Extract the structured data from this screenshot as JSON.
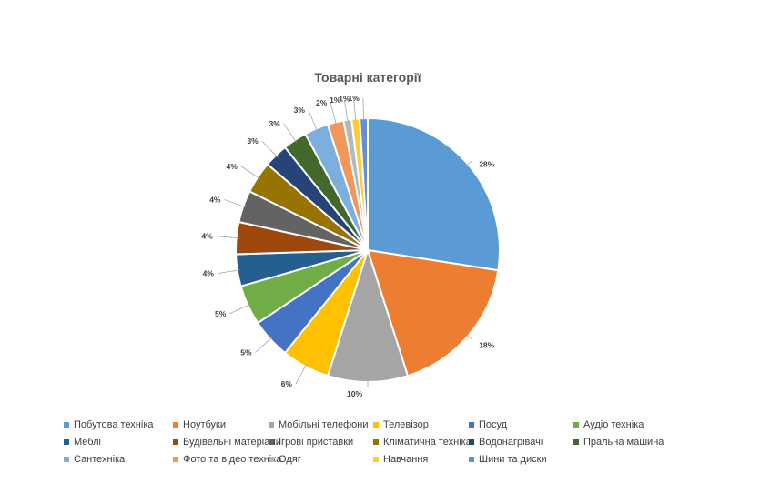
{
  "chart_data": {
    "type": "pie",
    "title": "Товарні категорії",
    "legend_position": "bottom",
    "slices": [
      {
        "label": "Побутова техніка",
        "value": 28,
        "value_label": "28%",
        "color": "#5B9BD5"
      },
      {
        "label": "Ноутбуки",
        "value": 18,
        "value_label": "18%",
        "color": "#ED7D31"
      },
      {
        "label": "Мобільні телефони",
        "value": 10,
        "value_label": "10%",
        "color": "#A5A5A5"
      },
      {
        "label": "Телевізор",
        "value": 6,
        "value_label": "6%",
        "color": "#FFC000"
      },
      {
        "label": "Посуд",
        "value": 5,
        "value_label": "5%",
        "color": "#4472C4"
      },
      {
        "label": "Аудіо техніка",
        "value": 5,
        "value_label": "5%",
        "color": "#70AD47"
      },
      {
        "label": "Меблі",
        "value": 4,
        "value_label": "4%",
        "color": "#255E91"
      },
      {
        "label": "Будівельні матеріали",
        "value": 4,
        "value_label": "4%",
        "color": "#9E480E"
      },
      {
        "label": "Ігрові приставки",
        "value": 4,
        "value_label": "4%",
        "color": "#636363"
      },
      {
        "label": "Кліматична техніка",
        "value": 4,
        "value_label": "4%",
        "color": "#997300"
      },
      {
        "label": "Водонагрівачі",
        "value": 3,
        "value_label": "3%",
        "color": "#264478"
      },
      {
        "label": "Пральна машина",
        "value": 3,
        "value_label": "3%",
        "color": "#43682B"
      },
      {
        "label": "Сантехніка",
        "value": 3,
        "value_label": "3%",
        "color": "#7CAFDD"
      },
      {
        "label": "Фото та відео техніка",
        "value": 2,
        "value_label": "2%",
        "color": "#F1975A"
      },
      {
        "label": "Одяг",
        "value": 1,
        "value_label": "1%",
        "color": "#B7B7B7"
      },
      {
        "label": "Навчання",
        "value": 1,
        "value_label": "1%",
        "color": "#FFCD33"
      },
      {
        "label": "Шини та диски",
        "value": 1,
        "value_label": "1%",
        "color": "#698ED0"
      }
    ]
  }
}
